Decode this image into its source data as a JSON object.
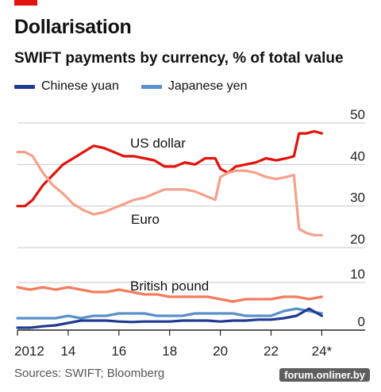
{
  "header": {
    "title": "Dollarisation",
    "subtitle": "SWIFT payments by currency, % of total value",
    "accent_color": "#e3120b"
  },
  "footer": {
    "source": "Sources: SWIFT; Bloomberg",
    "watermark": "forum.onliner.by"
  },
  "chart_data": [
    {
      "type": "line",
      "title": "",
      "ylim": [
        20,
        50
      ],
      "y_ticks": [
        "50",
        "40",
        "30",
        "20"
      ],
      "grid": true,
      "series": [
        {
          "name": "US dollar",
          "color": "#e3120b",
          "x": [
            2012.0,
            2012.3,
            2012.6,
            2013.0,
            2013.4,
            2013.8,
            2014.2,
            2014.6,
            2015.0,
            2015.4,
            2015.8,
            2016.2,
            2016.6,
            2017.0,
            2017.4,
            2017.8,
            2018.2,
            2018.6,
            2019.0,
            2019.4,
            2019.8,
            2020.0,
            2020.3,
            2020.6,
            2021.0,
            2021.4,
            2021.8,
            2022.2,
            2022.6,
            2022.9,
            2023.1,
            2023.4,
            2023.7,
            2024.0
          ],
          "values": [
            30.0,
            30.0,
            31.5,
            35.0,
            37.5,
            40.0,
            41.5,
            43.0,
            44.5,
            44.0,
            43.0,
            42.0,
            42.0,
            41.5,
            41.0,
            39.5,
            39.5,
            40.5,
            40.0,
            41.5,
            41.5,
            39.0,
            38.0,
            39.5,
            40.0,
            40.5,
            41.5,
            41.0,
            41.5,
            42.0,
            47.5,
            47.5,
            48.0,
            47.5
          ]
        },
        {
          "name": "Euro",
          "color": "#f6a08a",
          "x": [
            2012.0,
            2012.3,
            2012.6,
            2013.0,
            2013.4,
            2013.8,
            2014.2,
            2014.6,
            2015.0,
            2015.4,
            2015.8,
            2016.2,
            2016.6,
            2017.0,
            2017.4,
            2017.8,
            2018.2,
            2018.6,
            2019.0,
            2019.4,
            2019.8,
            2020.0,
            2020.3,
            2020.6,
            2021.0,
            2021.4,
            2021.8,
            2022.2,
            2022.6,
            2022.9,
            2023.1,
            2023.4,
            2023.7,
            2024.0
          ],
          "values": [
            43.0,
            43.0,
            42.0,
            38.0,
            35.0,
            33.0,
            30.5,
            29.0,
            28.0,
            28.5,
            29.5,
            30.5,
            31.5,
            32.0,
            33.0,
            34.0,
            34.0,
            34.0,
            33.5,
            32.5,
            31.5,
            37.0,
            38.0,
            38.5,
            38.5,
            38.0,
            37.0,
            36.5,
            37.0,
            37.5,
            24.5,
            23.5,
            23.0,
            23.0
          ]
        }
      ]
    },
    {
      "type": "line",
      "title": "",
      "ylim": [
        0,
        10
      ],
      "y_ticks": [
        "10",
        "0"
      ],
      "x_ticks": [
        "2012",
        "14",
        "16",
        "18",
        "20",
        "22",
        "24*"
      ],
      "xlim": [
        2012,
        24.2
      ],
      "grid": true,
      "series": [
        {
          "name": "British pound",
          "color": "#f47c5e",
          "x": [
            2012.0,
            2012.5,
            2013.0,
            2013.5,
            2014.0,
            2014.5,
            2015.0,
            2015.5,
            2016.0,
            2016.5,
            2017.0,
            2017.5,
            2018.0,
            2018.5,
            2019.0,
            2019.5,
            2020.0,
            2020.5,
            2021.0,
            2021.5,
            2022.0,
            2022.5,
            2023.0,
            2023.5,
            2024.0
          ],
          "values": [
            9.0,
            8.5,
            9.0,
            8.5,
            9.0,
            8.5,
            8.0,
            8.0,
            8.5,
            8.0,
            7.5,
            7.5,
            7.0,
            7.0,
            7.0,
            7.0,
            6.5,
            6.0,
            6.5,
            6.5,
            6.5,
            7.0,
            7.0,
            6.5,
            7.0
          ]
        },
        {
          "name": "Japanese yen",
          "color": "#5a8fc9",
          "x": [
            2012.0,
            2012.5,
            2013.0,
            2013.5,
            2014.0,
            2014.5,
            2015.0,
            2015.5,
            2016.0,
            2016.5,
            2017.0,
            2017.5,
            2018.0,
            2018.5,
            2019.0,
            2019.5,
            2020.0,
            2020.5,
            2021.0,
            2021.5,
            2022.0,
            2022.5,
            2023.0,
            2023.5,
            2024.0
          ],
          "values": [
            2.5,
            2.5,
            2.5,
            2.5,
            3.0,
            2.5,
            3.0,
            3.0,
            3.5,
            3.5,
            3.5,
            3.0,
            3.0,
            3.0,
            3.5,
            3.5,
            3.5,
            3.5,
            3.0,
            3.0,
            3.0,
            4.0,
            4.5,
            4.0,
            3.5
          ]
        },
        {
          "name": "Chinese yuan",
          "color": "#1f3a93",
          "x": [
            2012.0,
            2012.5,
            2013.0,
            2013.5,
            2014.0,
            2014.5,
            2015.0,
            2015.5,
            2016.0,
            2016.5,
            2017.0,
            2017.5,
            2018.0,
            2018.5,
            2019.0,
            2019.5,
            2020.0,
            2020.5,
            2021.0,
            2021.5,
            2022.0,
            2022.5,
            2023.0,
            2023.5,
            2024.0
          ],
          "values": [
            0.5,
            0.5,
            0.8,
            1.0,
            1.5,
            2.0,
            2.0,
            2.0,
            1.8,
            1.7,
            1.8,
            1.8,
            1.8,
            2.0,
            2.0,
            2.0,
            1.8,
            2.0,
            2.0,
            2.2,
            2.2,
            2.5,
            3.0,
            4.5,
            3.0
          ]
        }
      ]
    }
  ],
  "legend": [
    {
      "name": "Chinese yuan",
      "color": "#1f3a93"
    },
    {
      "name": "Japanese yen",
      "color": "#5a8fc9"
    }
  ],
  "labels": {
    "usd": "US dollar",
    "eur": "Euro",
    "gbp": "British pound"
  }
}
